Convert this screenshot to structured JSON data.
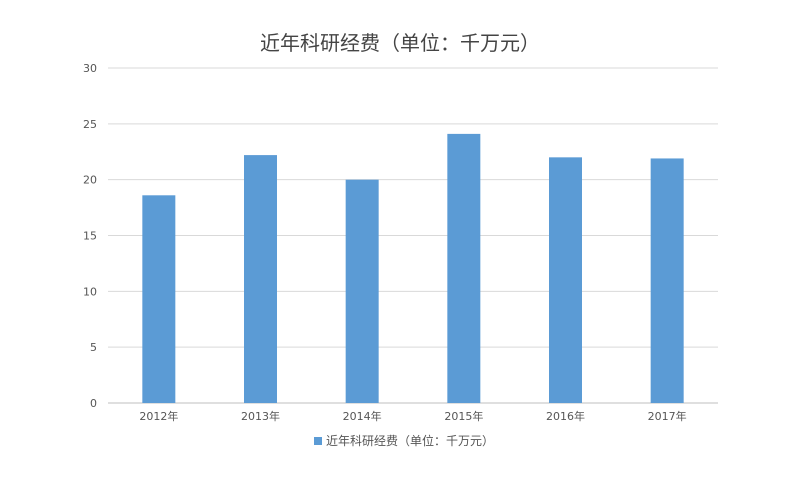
{
  "chart_data": {
    "type": "bar",
    "title": "近年科研经费（单位：千万元）",
    "categories": [
      "2012年",
      "2013年",
      "2014年",
      "2015年",
      "2016年",
      "2017年"
    ],
    "series": [
      {
        "name": "近年科研经费（单位：千万元）",
        "values": [
          18.6,
          22.2,
          20.0,
          24.1,
          22.0,
          21.9
        ]
      }
    ],
    "ylim": [
      0,
      30
    ],
    "yticks": [
      0,
      5,
      10,
      15,
      20,
      25,
      30
    ],
    "grid": true,
    "legend_position": "bottom",
    "colors": {
      "bar": "#5B9BD5",
      "grid": "#d9d9d9",
      "axis": "#bfbfbf"
    }
  }
}
